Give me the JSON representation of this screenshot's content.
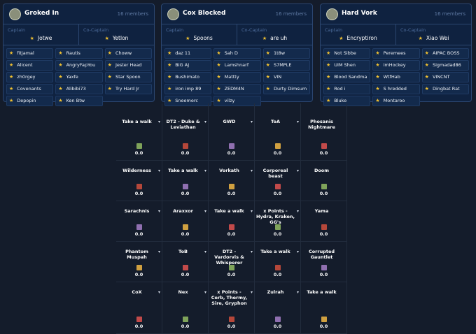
{
  "teams": [
    {
      "name": "Groked In",
      "member_count": "16 members",
      "captain_label": "Captain",
      "captain": "Jotwe",
      "co_captain_label": "Co-Captain",
      "co_captain": "Yetlon",
      "members": [
        "fitjamal",
        "Rautis",
        "Choww",
        "Alicent",
        "AngryFapYou",
        "Jester Head",
        "zh0rgey",
        "Yaxfe",
        "Star Spoon",
        "Covenants",
        "Alibibi73",
        "Try Hard Jr",
        "Depopin",
        "Ken Btw"
      ]
    },
    {
      "name": "Cox Blocked",
      "member_count": "16 members",
      "captain_label": "Captain",
      "captain": "Spoons",
      "co_captain_label": "Co-Captain",
      "co_captain": "are uh",
      "members": [
        "daz 11",
        "Sah D",
        "1t8w",
        "BIG AJ",
        "Lamshnarf",
        "S7MPLE",
        "Bushimato",
        "Mattty",
        "VIN",
        "iron imp 89",
        "ZEDM4N",
        "Durty Dimsum",
        "Sneemerc",
        "vilzy"
      ]
    },
    {
      "name": "Hard Vork",
      "member_count": "16 members",
      "captain_label": "Captain",
      "captain": "Encryptiron",
      "co_captain_label": "Co-Captain",
      "co_captain": "Xiao Wei",
      "members": [
        "Not Sibbe",
        "Peremees",
        "AIPAC BOSS",
        "UIM Shen",
        "imHockey",
        "Sigmadad86",
        "Blood Sandma",
        "WtfHab",
        "VINCNT",
        "Rod i",
        "S hredded",
        "Dingbat Rat",
        "Bluke",
        "Montaroo"
      ]
    }
  ],
  "tiles": [
    [
      {
        "title": "Take a walk",
        "value": "0.0"
      },
      {
        "title": "DT2 - Duke & Leviathan",
        "value": "0.0"
      },
      {
        "title": "GWD",
        "value": "0.0"
      },
      {
        "title": "ToA",
        "value": "0.0"
      },
      {
        "title": "Phosanis Nightmare",
        "value": "0.0"
      }
    ],
    [
      {
        "title": "Wilderness",
        "value": "0.0"
      },
      {
        "title": "Take a walk",
        "value": "0.0"
      },
      {
        "title": "Vorkath",
        "value": "0.0"
      },
      {
        "title": "Corporeal beast",
        "value": "0.0"
      },
      {
        "title": "Doom",
        "value": "0.0"
      }
    ],
    [
      {
        "title": "Sarachnis",
        "value": "0.0"
      },
      {
        "title": "Araxxor",
        "value": "0.0"
      },
      {
        "title": "Take a walk",
        "value": "0.0"
      },
      {
        "title": "x Points - Hydra, Kraken, GG's",
        "value": "0.0"
      },
      {
        "title": "Yama",
        "value": "0.0"
      }
    ],
    [
      {
        "title": "Phantom Muspah",
        "value": "0.0"
      },
      {
        "title": "ToB",
        "value": "0.0"
      },
      {
        "title": "DT2 - Vardorvis & Whisperer",
        "value": "0.0"
      },
      {
        "title": "Take a walk",
        "value": "0.0"
      },
      {
        "title": "Corrupted Gauntlet",
        "value": "0.0"
      }
    ],
    [
      {
        "title": "CoX",
        "value": "0.0"
      },
      {
        "title": "Nex",
        "value": "0.0"
      },
      {
        "title": "x Points - Cerb, Thermy, Sire, Gryphon",
        "value": "0.0"
      },
      {
        "title": "Zulrah",
        "value": "0.0"
      },
      {
        "title": "Take a walk",
        "value": "0.0"
      }
    ]
  ]
}
